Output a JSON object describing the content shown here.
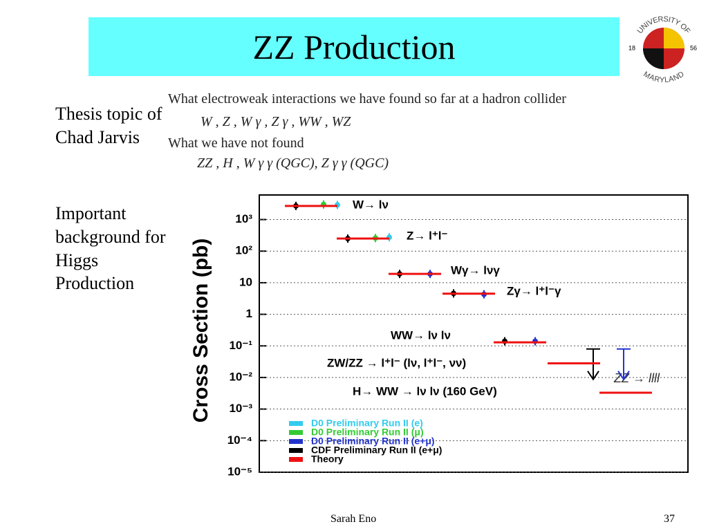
{
  "header": {
    "title": "ZZ Production"
  },
  "logo": {
    "top": "UNIVERSITY OF",
    "bottom": "MARYLAND",
    "left": "18",
    "right": "56"
  },
  "sidebar": [
    "Thesis topic of Chad Jarvis",
    "Important background for Higgs Production"
  ],
  "notes": [
    "What electroweak interactions we have found so far at a hadron collider",
    "W , Z , W γ , Z γ , WW , WZ",
    "What we have not found",
    "ZZ , H , W γ γ (QGC), Z γ γ (QGC)"
  ],
  "chart_data": {
    "type": "scatter",
    "ylabel": "Cross Section   (pb)",
    "log_y": true,
    "grid": true,
    "categories": [
      "W→ lν",
      "Z→ l⁺l⁻",
      "Wγ→ lνγ",
      "Zγ→ l⁺l⁻γ",
      "WW→ lν lν",
      "ZW/ZZ → l⁺l⁻ (lν, l⁺l⁻, νν)",
      "H→ WW → lν lν (160 GeV)"
    ],
    "annotation": "ZZ → llll",
    "ylim": [
      1e-05,
      6000
    ],
    "yticks": [
      {
        "value": 1e-05,
        "label": "10⁻⁵"
      },
      {
        "value": 0.0001,
        "label": "10⁻⁴"
      },
      {
        "value": 0.001,
        "label": "10⁻³"
      },
      {
        "value": 0.01,
        "label": "10⁻²"
      },
      {
        "value": 0.1,
        "label": "10⁻¹"
      },
      1,
      10,
      {
        "value": 100,
        "label": "10²"
      },
      {
        "value": 1000,
        "label": "10³"
      }
    ],
    "series": [
      {
        "name": "D0 Preliminary Run II (e)",
        "color": "#33ccee",
        "values": [
          2900,
          275,
          null,
          null,
          null,
          null,
          null
        ]
      },
      {
        "name": "D0 Preliminary Run II (μ)",
        "color": "#33cc33",
        "values": [
          3000,
          260,
          null,
          null,
          null,
          null,
          null
        ]
      },
      {
        "name": "D0 Preliminary Run II (e+μ)",
        "color": "#2233cc",
        "values": [
          null,
          null,
          19,
          4.3,
          0.14,
          0.08,
          null
        ]
      },
      {
        "name": "CDF Preliminary Run II (e+μ)",
        "color": "#000000",
        "values": [
          2700,
          250,
          19,
          4.6,
          0.14,
          0.08,
          null
        ]
      },
      {
        "name": "Theory",
        "color": "#ee1111",
        "values": [
          2700,
          250,
          19,
          4.5,
          0.13,
          0.028,
          0.0033
        ]
      }
    ]
  },
  "footer": {
    "author": "Sarah Eno",
    "page": "37"
  }
}
